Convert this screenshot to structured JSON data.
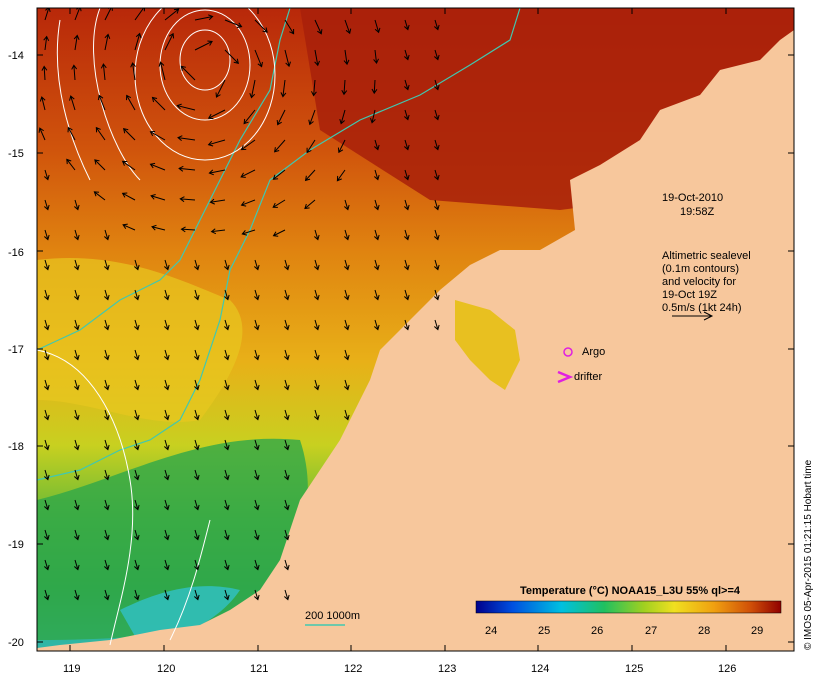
{
  "map": {
    "datetime_line1": "19-Oct-2010",
    "datetime_line2": "19:58Z",
    "altimetry_lines": [
      "Altimetric sealevel",
      "(0.1m contours)",
      "and velocity for",
      "19-Oct 19Z",
      "0.5m/s (1kt 24h)"
    ],
    "argo_label": "Argo",
    "drifter_label": "drifter",
    "bathymetry_label": "200  1000m",
    "colorbar_title": "Temperature (°C) NOAA15_L3U 55% ql>=4",
    "colorbar_ticks": [
      "24",
      "25",
      "26",
      "27",
      "28",
      "29"
    ],
    "y_ticks": [
      "-14",
      "-15",
      "-16",
      "-17",
      "-18",
      "-19",
      "-20"
    ],
    "x_ticks": [
      "119",
      "120",
      "121",
      "122",
      "123",
      "124",
      "125",
      "126"
    ],
    "credit": "© IMOS 05-Apr-2015 01:21:15 Hobart time",
    "colors": {
      "ocean_warm": "#b01a00",
      "ocean_mid": "#e07a10",
      "ocean_yellow": "#e8d020",
      "ocean_green": "#30a840",
      "ocean_cyan": "#28b8c8",
      "land": "#f7c79c",
      "contour": "#ffffff",
      "isobath": "#40c8b0",
      "argo": "#e020e0",
      "drifter": "#e020e0"
    }
  }
}
